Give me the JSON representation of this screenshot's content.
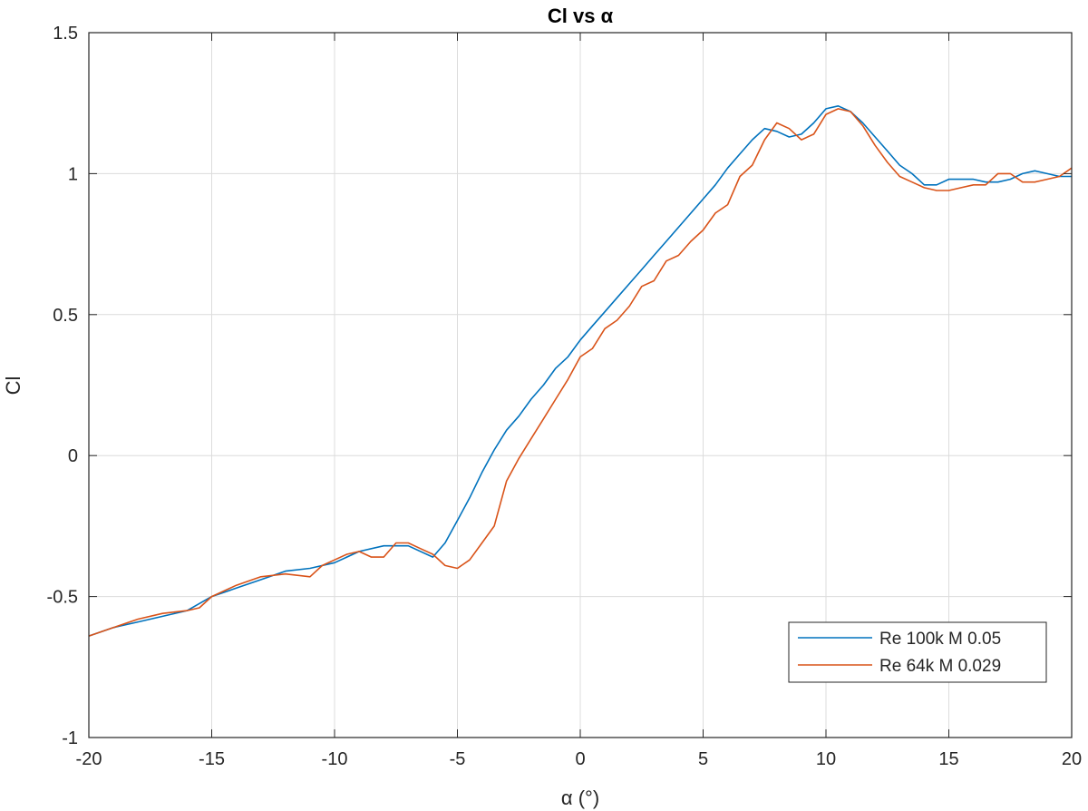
{
  "chart_data": {
    "type": "line",
    "title": "Cl vs α",
    "xlabel": "α (°)",
    "ylabel": "Cl",
    "xlim": [
      -20,
      20
    ],
    "ylim": [
      -1,
      1.5
    ],
    "xticks": [
      -20,
      -15,
      -10,
      -5,
      0,
      5,
      10,
      15,
      20
    ],
    "yticks": [
      -1,
      -0.5,
      0,
      0.5,
      1,
      1.5
    ],
    "xtick_labels": [
      "-20",
      "-15",
      "-10",
      "-5",
      "0",
      "5",
      "10",
      "15",
      "20"
    ],
    "ytick_labels": [
      "-1",
      "-0.5",
      "0",
      "0.5",
      "1",
      "1.5"
    ],
    "grid": true,
    "legend_position": "bottom-right",
    "series": [
      {
        "name": "Re 100k M 0.05",
        "color": "#0072BD",
        "x": [
          -20,
          -19,
          -18,
          -17,
          -16,
          -15,
          -14,
          -13,
          -12,
          -11,
          -10,
          -9,
          -8,
          -7,
          -6,
          -5.5,
          -5,
          -4.5,
          -4,
          -3.5,
          -3,
          -2.5,
          -2,
          -1.5,
          -1,
          -0.5,
          0,
          0.5,
          1,
          1.5,
          2,
          2.5,
          3,
          3.5,
          4,
          4.5,
          5,
          5.5,
          6,
          6.5,
          7,
          7.5,
          8,
          8.5,
          9,
          9.5,
          10,
          10.5,
          11,
          11.5,
          12,
          12.5,
          13,
          13.5,
          14,
          14.5,
          15,
          15.5,
          16,
          16.5,
          17,
          17.5,
          18,
          18.5,
          19,
          19.5,
          20
        ],
        "y": [
          -0.64,
          -0.61,
          -0.59,
          -0.57,
          -0.55,
          -0.5,
          -0.47,
          -0.44,
          -0.41,
          -0.4,
          -0.38,
          -0.34,
          -0.32,
          -0.32,
          -0.36,
          -0.31,
          -0.23,
          -0.15,
          -0.06,
          0.02,
          0.09,
          0.14,
          0.2,
          0.25,
          0.31,
          0.35,
          0.41,
          0.46,
          0.51,
          0.56,
          0.61,
          0.66,
          0.71,
          0.76,
          0.81,
          0.86,
          0.91,
          0.96,
          1.02,
          1.07,
          1.12,
          1.16,
          1.15,
          1.13,
          1.14,
          1.18,
          1.23,
          1.24,
          1.22,
          1.18,
          1.13,
          1.08,
          1.03,
          1.0,
          0.96,
          0.96,
          0.98,
          0.98,
          0.98,
          0.97,
          0.97,
          0.98,
          1.0,
          1.01,
          1.0,
          0.99,
          0.99
        ]
      },
      {
        "name": "Re 64k M 0.029",
        "color": "#D95319",
        "x": [
          -20,
          -19,
          -18,
          -17,
          -16,
          -15.5,
          -15,
          -14,
          -13,
          -12,
          -11,
          -10.5,
          -10,
          -9.5,
          -9,
          -8.5,
          -8,
          -7.5,
          -7,
          -6.5,
          -6,
          -5.5,
          -5,
          -4.5,
          -4,
          -3.5,
          -3,
          -2.5,
          -2,
          -1.5,
          -1,
          -0.5,
          0,
          0.5,
          1,
          1.5,
          2,
          2.5,
          3,
          3.5,
          4,
          4.5,
          5,
          5.5,
          6,
          6.5,
          7,
          7.5,
          8,
          8.5,
          9,
          9.5,
          10,
          10.5,
          11,
          11.5,
          12,
          12.5,
          13,
          13.5,
          14,
          14.5,
          15,
          15.5,
          16,
          16.5,
          17,
          17.5,
          18,
          18.5,
          19,
          19.5,
          20
        ],
        "y": [
          -0.64,
          -0.61,
          -0.58,
          -0.56,
          -0.55,
          -0.54,
          -0.5,
          -0.46,
          -0.43,
          -0.42,
          -0.43,
          -0.39,
          -0.37,
          -0.35,
          -0.34,
          -0.36,
          -0.36,
          -0.31,
          -0.31,
          -0.33,
          -0.35,
          -0.39,
          -0.4,
          -0.37,
          -0.31,
          -0.25,
          -0.09,
          -0.01,
          0.06,
          0.13,
          0.2,
          0.27,
          0.35,
          0.38,
          0.45,
          0.48,
          0.53,
          0.6,
          0.62,
          0.69,
          0.71,
          0.76,
          0.8,
          0.86,
          0.89,
          0.99,
          1.03,
          1.12,
          1.18,
          1.16,
          1.12,
          1.14,
          1.21,
          1.23,
          1.22,
          1.17,
          1.1,
          1.04,
          0.99,
          0.97,
          0.95,
          0.94,
          0.94,
          0.95,
          0.96,
          0.96,
          1.0,
          1.0,
          0.97,
          0.97,
          0.98,
          0.99,
          1.02
        ]
      }
    ]
  }
}
